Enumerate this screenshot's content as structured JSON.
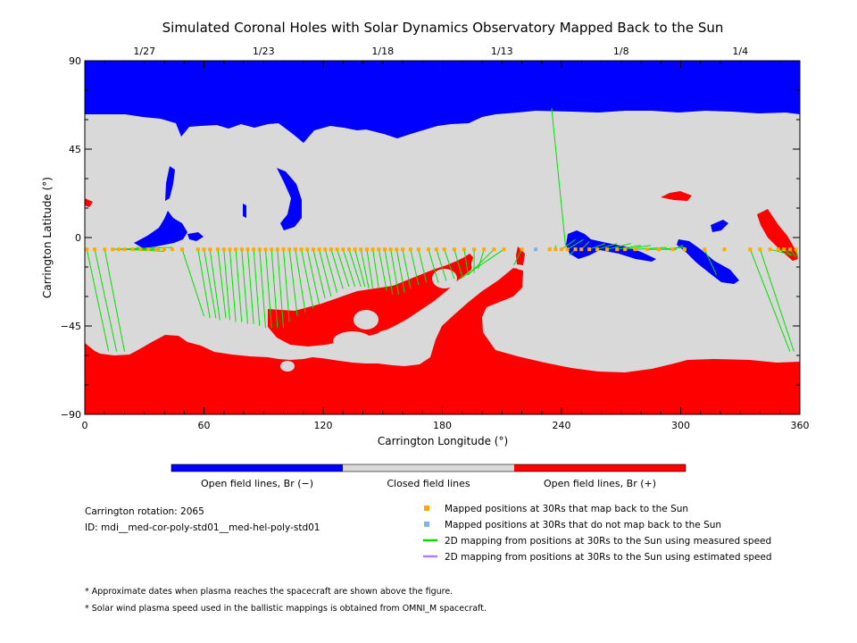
{
  "chart_data": {
    "type": "map",
    "title": "Simulated Coronal Holes with Solar Dynamics Observatory Mapped Back to the Sun",
    "xlabel": "Carrington Longitude (°)",
    "ylabel": "Carrington Latitude (°)",
    "xlim": [
      0,
      360
    ],
    "ylim": [
      -90,
      90
    ],
    "x_ticks": [
      0,
      60,
      120,
      180,
      240,
      300,
      360
    ],
    "y_ticks": [
      -90,
      -45,
      0,
      45,
      90
    ],
    "y_tick_labels": [
      "−90",
      "−45",
      "0",
      "45",
      "90"
    ],
    "date_ticks": [
      {
        "label": "1/27",
        "lon": 30
      },
      {
        "label": "1/23",
        "lon": 90
      },
      {
        "label": "1/18",
        "lon": 150
      },
      {
        "label": "1/13",
        "lon": 210
      },
      {
        "label": "1/8",
        "lon": 270
      },
      {
        "label": "1/4",
        "lon": 330
      }
    ],
    "colors": {
      "open_negative": "#0000ff",
      "closed": "#d9d9d9",
      "open_positive": "#ff0000",
      "mapped": "#ffaa00",
      "not_mapped": "#80b0f0",
      "measured_speed": "#00e000",
      "estimated_speed": "#b080f0"
    },
    "color_bar": [
      {
        "label": "Open field lines, Br (−)",
        "color": "#0000ff"
      },
      {
        "label": "Closed field lines",
        "color": "#d9d9d9"
      },
      {
        "label": "Open field lines, Br (+)",
        "color": "#ff0000"
      }
    ],
    "legend": [
      {
        "label": "Mapped positions at 30Rs that map back to the Sun",
        "symbol": "square",
        "color": "#ffaa00"
      },
      {
        "label": "Mapped positions at 30Rs that do not map back to the Sun",
        "symbol": "square",
        "color": "#80b0f0"
      },
      {
        "label": "2D mapping from positions at 30Rs to the Sun using measured speed",
        "symbol": "line",
        "color": "#00e000"
      },
      {
        "label": "2D mapping from positions at 30Rs to the Sun using estimated speed",
        "symbol": "line",
        "color": "#b080f0"
      }
    ],
    "mappings": [
      {
        "lon0": 1,
        "lat0": -6,
        "lon1": 12,
        "lat1": -58
      },
      {
        "lon0": 5,
        "lat0": -6,
        "lon1": 16,
        "lat1": -58
      },
      {
        "lon0": 10,
        "lat0": -6,
        "lon1": 20,
        "lat1": -58
      },
      {
        "lon0": 14,
        "lat0": -6,
        "lon1": 44,
        "lat1": -5
      },
      {
        "lon0": 17,
        "lat0": -6,
        "lon1": 38,
        "lat1": -6
      },
      {
        "lon0": 20,
        "lat0": -6,
        "lon1": 40,
        "lat1": -7
      },
      {
        "lon0": 24,
        "lat0": -6,
        "lon1": 36,
        "lat1": -5
      },
      {
        "lon0": 28,
        "lat0": -6,
        "lon1": 32,
        "lat1": -6
      },
      {
        "lon0": 32,
        "lat0": -6,
        "lon1": 26,
        "lat1": -5
      },
      {
        "lon0": 36,
        "lat0": -6,
        "lon1": 24,
        "lat1": -6
      },
      {
        "lon0": 49,
        "lat0": -6,
        "lon1": 60,
        "lat1": -40
      },
      {
        "lon0": 57,
        "lat0": -6,
        "lon1": 63,
        "lat1": -41
      },
      {
        "lon0": 60,
        "lat0": -6,
        "lon1": 66,
        "lat1": -41
      },
      {
        "lon0": 63,
        "lat0": -6,
        "lon1": 68,
        "lat1": -42
      },
      {
        "lon0": 67,
        "lat0": -6,
        "lon1": 71,
        "lat1": -41
      },
      {
        "lon0": 70,
        "lat0": -6,
        "lon1": 73,
        "lat1": -42
      },
      {
        "lon0": 73,
        "lat0": -6,
        "lon1": 76,
        "lat1": -43
      },
      {
        "lon0": 76,
        "lat0": -6,
        "lon1": 79,
        "lat1": -43
      },
      {
        "lon0": 79,
        "lat0": -6,
        "lon1": 82,
        "lat1": -44
      },
      {
        "lon0": 82,
        "lat0": -6,
        "lon1": 85,
        "lat1": -44
      },
      {
        "lon0": 85,
        "lat0": -6,
        "lon1": 88,
        "lat1": -45
      },
      {
        "lon0": 88,
        "lat0": -6,
        "lon1": 91,
        "lat1": -46
      },
      {
        "lon0": 91,
        "lat0": -6,
        "lon1": 94,
        "lat1": -46
      },
      {
        "lon0": 94,
        "lat0": -6,
        "lon1": 97,
        "lat1": -46
      },
      {
        "lon0": 97,
        "lat0": -6,
        "lon1": 100,
        "lat1": -46
      },
      {
        "lon0": 100,
        "lat0": -6,
        "lon1": 103,
        "lat1": -43
      },
      {
        "lon0": 103,
        "lat0": -6,
        "lon1": 107,
        "lat1": -40
      },
      {
        "lon0": 106,
        "lat0": -6,
        "lon1": 111,
        "lat1": -38
      },
      {
        "lon0": 109,
        "lat0": -6,
        "lon1": 115,
        "lat1": -36
      },
      {
        "lon0": 112,
        "lat0": -6,
        "lon1": 118,
        "lat1": -34
      },
      {
        "lon0": 115,
        "lat0": -6,
        "lon1": 121,
        "lat1": -31
      },
      {
        "lon0": 118,
        "lat0": -6,
        "lon1": 124,
        "lat1": -30
      },
      {
        "lon0": 121,
        "lat0": -6,
        "lon1": 127,
        "lat1": -28
      },
      {
        "lon0": 124,
        "lat0": -6,
        "lon1": 130,
        "lat1": -26
      },
      {
        "lon0": 127,
        "lat0": -6,
        "lon1": 133,
        "lat1": -25
      },
      {
        "lon0": 130,
        "lat0": -6,
        "lon1": 136,
        "lat1": -25
      },
      {
        "lon0": 133,
        "lat0": -6,
        "lon1": 139,
        "lat1": -25
      },
      {
        "lon0": 136,
        "lat0": -6,
        "lon1": 141,
        "lat1": -25
      },
      {
        "lon0": 139,
        "lat0": -6,
        "lon1": 143,
        "lat1": -26
      },
      {
        "lon0": 142,
        "lat0": -6,
        "lon1": 145,
        "lat1": -26
      },
      {
        "lon0": 145,
        "lat0": -6,
        "lon1": 148,
        "lat1": -26
      },
      {
        "lon0": 148,
        "lat0": -6,
        "lon1": 152,
        "lat1": -27
      },
      {
        "lon0": 151,
        "lat0": -6,
        "lon1": 155,
        "lat1": -29
      },
      {
        "lon0": 154,
        "lat0": -6,
        "lon1": 158,
        "lat1": -29
      },
      {
        "lon0": 157,
        "lat0": -6,
        "lon1": 161,
        "lat1": -28
      },
      {
        "lon0": 160,
        "lat0": -6,
        "lon1": 164,
        "lat1": -26
      },
      {
        "lon0": 164,
        "lat0": -6,
        "lon1": 168,
        "lat1": -24
      },
      {
        "lon0": 168,
        "lat0": -6,
        "lon1": 172,
        "lat1": -23
      },
      {
        "lon0": 173,
        "lat0": -6,
        "lon1": 178,
        "lat1": -23
      },
      {
        "lon0": 177,
        "lat0": -6,
        "lon1": 182,
        "lat1": -22
      },
      {
        "lon0": 181,
        "lat0": -6,
        "lon1": 186,
        "lat1": -21
      },
      {
        "lon0": 186,
        "lat0": -6,
        "lon1": 190,
        "lat1": -20
      },
      {
        "lon0": 191,
        "lat0": -6,
        "lon1": 193,
        "lat1": -19
      },
      {
        "lon0": 196,
        "lat0": -6,
        "lon1": 196,
        "lat1": -18
      },
      {
        "lon0": 201,
        "lat0": -6,
        "lon1": 198,
        "lat1": -16
      },
      {
        "lon0": 206,
        "lat0": -6,
        "lon1": 193,
        "lat1": -19
      },
      {
        "lon0": 211,
        "lat0": -6,
        "lon1": 189,
        "lat1": -21
      },
      {
        "lon0": 220,
        "lat0": -6,
        "lon1": 216,
        "lat1": -14
      },
      {
        "lon0": 234,
        "lat0": -6,
        "lon1": 235,
        "lat1": -5
      },
      {
        "lon0": 237,
        "lat0": -6,
        "lon1": 237,
        "lat1": -4
      },
      {
        "lon0": 240,
        "lat0": -6,
        "lon1": 247,
        "lat1": -1
      },
      {
        "lon0": 243,
        "lat0": -6,
        "lon1": 251,
        "lat1": -1
      },
      {
        "lon0": 247,
        "lat0": -6,
        "lon1": 244,
        "lat1": -9
      },
      {
        "lon0": 250,
        "lat0": -6,
        "lon1": 254,
        "lat1": -2
      },
      {
        "lon0": 254,
        "lat0": -6,
        "lon1": 262,
        "lat1": -3
      },
      {
        "lon0": 258,
        "lat0": -6,
        "lon1": 268,
        "lat1": -3
      },
      {
        "lon0": 263,
        "lat0": -6,
        "lon1": 275,
        "lat1": -3
      },
      {
        "lon0": 268,
        "lat0": -6,
        "lon1": 280,
        "lat1": -4
      },
      {
        "lon0": 272,
        "lat0": -6,
        "lon1": 285,
        "lat1": -4
      },
      {
        "lon0": 277,
        "lat0": -6,
        "lon1": 293,
        "lat1": -5
      },
      {
        "lon0": 283,
        "lat0": -6,
        "lon1": 298,
        "lat1": -6
      },
      {
        "lon0": 289,
        "lat0": -6,
        "lon1": 302,
        "lat1": -5
      },
      {
        "lon0": 296,
        "lat0": -6,
        "lon1": 301,
        "lat1": -4
      },
      {
        "lon0": 302,
        "lat0": -6,
        "lon1": 300,
        "lat1": -4
      },
      {
        "lon0": 312,
        "lat0": -6,
        "lon1": 318,
        "lat1": -19
      },
      {
        "lon0": 322,
        "lat0": -6,
        "lon1": 322,
        "lat1": -5
      },
      {
        "lon0": 335,
        "lat0": -6,
        "lon1": 355,
        "lat1": -58
      },
      {
        "lon0": 340,
        "lat0": -6,
        "lon1": 357,
        "lat1": -58
      },
      {
        "lon0": 345,
        "lat0": -6,
        "lon1": 356,
        "lat1": -9
      },
      {
        "lon0": 349,
        "lat0": -6,
        "lon1": 353,
        "lat1": -7
      },
      {
        "lon0": 352,
        "lat0": -6,
        "lon1": 356,
        "lat1": -9
      },
      {
        "lon0": 355,
        "lat0": -6,
        "lon1": 358,
        "lat1": -10
      },
      {
        "lon0": 358,
        "lat0": -6,
        "lon1": 359,
        "lat1": -10
      },
      {
        "lon0": 242,
        "lat0": -4,
        "lon1": 235,
        "lat1": 66
      }
    ],
    "mapped_points_lon": [
      1,
      5,
      10,
      14,
      17,
      20,
      24,
      28,
      32,
      36,
      40,
      44,
      49,
      57,
      60,
      63,
      67,
      70,
      73,
      76,
      79,
      82,
      85,
      88,
      91,
      94,
      97,
      100,
      103,
      106,
      109,
      112,
      115,
      118,
      121,
      124,
      127,
      130,
      133,
      136,
      139,
      142,
      145,
      148,
      151,
      154,
      157,
      160,
      164,
      168,
      173,
      177,
      181,
      186,
      191,
      196,
      201,
      206,
      211,
      220,
      234,
      237,
      240,
      243,
      247,
      250,
      254,
      258,
      263,
      268,
      272,
      277,
      283,
      289,
      296,
      302,
      312,
      322,
      335,
      340,
      345,
      349,
      352,
      355,
      358
    ],
    "mapped_points_lat": -6,
    "unmapped_points": [
      {
        "lon": 227,
        "lat": -6
      }
    ]
  },
  "info": {
    "rotation": "Carrington rotation: 2065",
    "id": "ID: mdi__med-cor-poly-std01__med-hel-poly-std01"
  },
  "notes": [
    "* Approximate dates when plasma reaches the spacecraft are shown above the figure.",
    "* Solar wind plasma speed used in the ballistic mappings is obtained from OMNI_M spacecraft."
  ]
}
